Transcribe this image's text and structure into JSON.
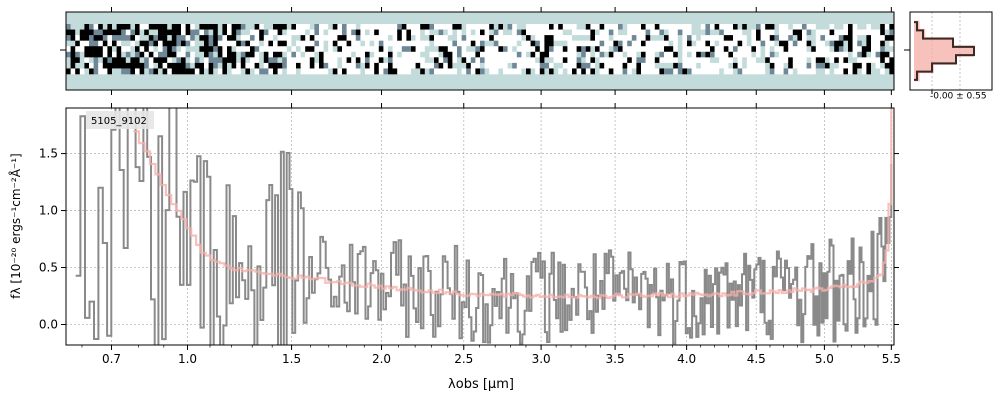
{
  "chart_data": [
    {
      "type": "heatmap",
      "panel": "2d-spectrum",
      "colormap": [
        "#ffffff",
        "#c3dcdb",
        "#6f8898",
        "#000000"
      ],
      "background_color": "#c3dcdb",
      "rows": 9,
      "columns": 180
    },
    {
      "type": "line",
      "panel": "cross-dispersion-profile",
      "annotation": "-0.00 ± 0.55",
      "x": [
        -3,
        -2,
        -1,
        0,
        1,
        2,
        3
      ],
      "y": [
        0.05,
        0.15,
        0.65,
        1.0,
        0.7,
        0.3,
        0.05
      ],
      "series_colors": {
        "profile": "#3a2a22",
        "model": "#f6a9a0"
      }
    },
    {
      "type": "line",
      "panel": "1d-spectrum",
      "label": "5105_9102",
      "xlabel": "λobs [μm]",
      "ylabel": "fλ [10⁻²⁰ ergs⁻¹cm⁻²Å⁻¹]",
      "x_axis_kind": "wavelength_reciprocal_stretched",
      "xlim": [
        0.55,
        5.52
      ],
      "ylim": [
        -0.18,
        1.9
      ],
      "x_ticks": [
        0.7,
        1.0,
        1.5,
        2.0,
        2.5,
        3.0,
        3.5,
        4.0,
        4.5,
        5.0,
        5.5
      ],
      "x_tick_labels": [
        "0.7",
        "1.0",
        "1.5",
        "2.0",
        "2.5",
        "3.0",
        "3.5",
        "4.0",
        "4.5",
        "5.0",
        "5.5"
      ],
      "y_ticks": [
        0.0,
        0.5,
        1.0,
        1.5
      ],
      "y_tick_labels": [
        "0.0",
        "0.5",
        "1.0",
        "1.5"
      ],
      "grid": true,
      "series_colors": {
        "data": "#8a8a8a",
        "model": "#f6b0aa"
      },
      "model_points": [
        [
          0.78,
          1.68
        ],
        [
          0.82,
          1.55
        ],
        [
          0.86,
          1.35
        ],
        [
          0.9,
          1.18
        ],
        [
          0.95,
          1.0
        ],
        [
          1.0,
          0.82
        ],
        [
          1.05,
          0.66
        ],
        [
          1.1,
          0.56
        ],
        [
          1.2,
          0.49
        ],
        [
          1.3,
          0.46
        ],
        [
          1.5,
          0.42
        ],
        [
          1.8,
          0.36
        ],
        [
          2.0,
          0.33
        ],
        [
          2.3,
          0.29
        ],
        [
          2.6,
          0.26
        ],
        [
          3.0,
          0.25
        ],
        [
          3.5,
          0.25
        ],
        [
          4.0,
          0.26
        ],
        [
          4.5,
          0.28
        ],
        [
          4.8,
          0.3
        ],
        [
          5.0,
          0.31
        ],
        [
          5.2,
          0.34
        ],
        [
          5.35,
          0.38
        ],
        [
          5.42,
          0.45
        ],
        [
          5.47,
          0.7
        ],
        [
          5.5,
          1.9
        ]
      ]
    }
  ]
}
